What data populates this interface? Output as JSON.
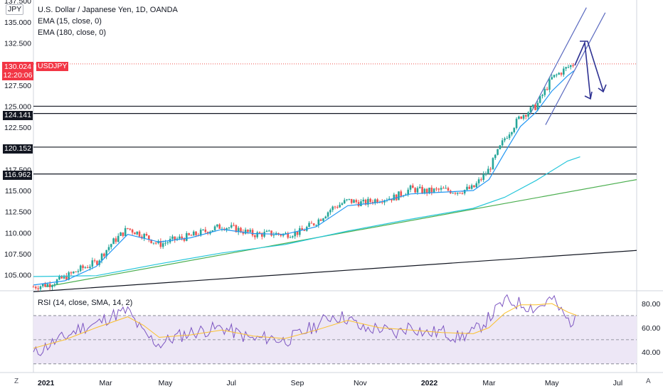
{
  "symbol": {
    "currency_badge": "JPY",
    "title": "U.S. Dollar / Japanese Yen, 1D, OANDA",
    "ema_fast_label": "EMA (15, close, 0)",
    "ema_slow_label": "EMA (180, close, 0)"
  },
  "price_marker": {
    "price": "130.024",
    "countdown": "12:20:06",
    "ticker": "USDJPY",
    "color": "#f23645"
  },
  "levels": [
    {
      "label": "124.141",
      "value": 124.141
    },
    {
      "label": "120.152",
      "value": 120.152
    },
    {
      "label": "116.962",
      "value": 116.962
    }
  ],
  "rsi": {
    "label": "RSI (14, close, SMA, 14, 2)",
    "ticks": [
      "80.00",
      "60.00",
      "40.00"
    ]
  },
  "bottom_bar": {
    "left_button": "Z",
    "right_button": "A"
  },
  "colors": {
    "up": "#26a69a",
    "down": "#ef5350",
    "ema_fast": "#2196f3",
    "ema_slow": "#26c6da",
    "trend_green": "#4caf50",
    "trend_black": "#131722",
    "annotation": "#2e3192",
    "rsi_line": "#7e57c2",
    "rsi_ma": "#fbc02d",
    "rsi_band": "#ede7f6"
  },
  "chart_data": {
    "type": "candlestick",
    "title": "U.S. Dollar / Japanese Yen, 1D, OANDA",
    "x_ticks": [
      "2021",
      "Mar",
      "May",
      "Jul",
      "Sep",
      "Nov",
      "2022",
      "Mar",
      "May",
      "Jul"
    ],
    "y_ticks": [
      "137.500",
      "135.000",
      "132.500",
      "130.000",
      "127.500",
      "125.000",
      "122.500",
      "120.000",
      "117.500",
      "115.000",
      "112.500",
      "110.000",
      "107.500",
      "105.000"
    ],
    "ylim": [
      103.2,
      137.6
    ],
    "x_range_months": [
      0,
      19.2
    ],
    "close_series": {
      "name": "USDJPY",
      "points": [
        [
          0,
          103.6
        ],
        [
          0.5,
          103.9
        ],
        [
          1,
          104.7
        ],
        [
          1.5,
          105.7
        ],
        [
          2,
          106.5
        ],
        [
          2.5,
          108.8
        ],
        [
          3,
          110.5
        ],
        [
          3.5,
          109.7
        ],
        [
          4,
          108.6
        ],
        [
          4.5,
          109.2
        ],
        [
          5,
          109.6
        ],
        [
          5.5,
          110.2
        ],
        [
          6,
          110.8
        ],
        [
          6.5,
          110.4
        ],
        [
          7,
          109.8
        ],
        [
          7.5,
          109.9
        ],
        [
          8,
          109.8
        ],
        [
          8.5,
          110.1
        ],
        [
          9,
          111.3
        ],
        [
          9.5,
          112.9
        ],
        [
          10,
          113.8
        ],
        [
          10.5,
          113.5
        ],
        [
          11,
          114.0
        ],
        [
          11.5,
          114.2
        ],
        [
          12,
          115.2
        ],
        [
          12.5,
          114.9
        ],
        [
          13,
          115.1
        ],
        [
          13.5,
          114.9
        ],
        [
          14,
          115.3
        ],
        [
          14.5,
          117.5
        ],
        [
          15,
          121.2
        ],
        [
          15.5,
          123.8
        ],
        [
          16,
          125.0
        ],
        [
          16.5,
          128.3
        ],
        [
          17,
          129.6
        ],
        [
          17.2,
          130.0
        ]
      ]
    },
    "ema_fast": {
      "name": "EMA (15, close, 0)",
      "points": [
        [
          0,
          103.8
        ],
        [
          1,
          104.3
        ],
        [
          2,
          106.0
        ],
        [
          3,
          109.8
        ],
        [
          4,
          108.9
        ],
        [
          5,
          109.4
        ],
        [
          6,
          110.4
        ],
        [
          7,
          109.9
        ],
        [
          8,
          109.8
        ],
        [
          9,
          110.7
        ],
        [
          10,
          113.2
        ],
        [
          11,
          113.6
        ],
        [
          12,
          114.6
        ],
        [
          13,
          114.8
        ],
        [
          14,
          115.0
        ],
        [
          14.5,
          116.3
        ],
        [
          15,
          119.5
        ],
        [
          15.5,
          122.6
        ],
        [
          16,
          124.3
        ],
        [
          16.5,
          126.8
        ],
        [
          17,
          128.6
        ],
        [
          17.2,
          129.2
        ]
      ]
    },
    "ema_slow": {
      "name": "EMA (180, close, 0)",
      "points": [
        [
          0,
          104.8
        ],
        [
          2,
          104.9
        ],
        [
          4,
          106.3
        ],
        [
          6,
          107.6
        ],
        [
          8,
          108.6
        ],
        [
          10,
          110.2
        ],
        [
          12,
          111.6
        ],
        [
          14,
          112.9
        ],
        [
          15,
          114.2
        ],
        [
          16,
          116.2
        ],
        [
          17,
          118.5
        ],
        [
          17.4,
          119.0
        ]
      ]
    },
    "trendlines": [
      {
        "from": [
          0.4,
          103.6
        ],
        "to": [
          19.2,
          116.3
        ]
      },
      {
        "from": [
          0.0,
          103.0
        ],
        "to": [
          19.2,
          107.9
        ]
      },
      {
        "from": [
          15.8,
          124.0
        ],
        "to": [
          17.6,
          136.7
        ]
      },
      {
        "from": [
          16.3,
          122.8
        ],
        "to": [
          18.2,
          136.1
        ]
      }
    ],
    "horizontal_levels": [
      124.141,
      120.152,
      116.962
    ],
    "last_price": 130.024
  },
  "rsi_data": {
    "ylim": [
      24,
      90
    ],
    "band": [
      30,
      70
    ],
    "mid": 50,
    "rsi_points": [
      [
        0,
        38
      ],
      [
        0.5,
        46
      ],
      [
        1,
        52
      ],
      [
        1.5,
        60
      ],
      [
        2,
        63
      ],
      [
        2.5,
        70
      ],
      [
        3,
        74
      ],
      [
        3.5,
        55
      ],
      [
        4,
        46
      ],
      [
        4.5,
        52
      ],
      [
        5,
        56
      ],
      [
        5.5,
        58
      ],
      [
        6,
        60
      ],
      [
        6.5,
        55
      ],
      [
        7,
        50
      ],
      [
        7.5,
        52
      ],
      [
        8,
        49
      ],
      [
        8.5,
        55
      ],
      [
        9,
        62
      ],
      [
        9.5,
        70
      ],
      [
        10,
        68
      ],
      [
        10.5,
        58
      ],
      [
        11,
        60
      ],
      [
        11.5,
        54
      ],
      [
        12,
        62
      ],
      [
        12.5,
        55
      ],
      [
        13,
        57
      ],
      [
        13.5,
        52
      ],
      [
        14,
        56
      ],
      [
        14.5,
        68
      ],
      [
        15,
        82
      ],
      [
        15.5,
        80
      ],
      [
        16,
        76
      ],
      [
        16.5,
        84
      ],
      [
        17,
        66
      ],
      [
        17.3,
        65
      ]
    ],
    "ma_points": [
      [
        0,
        43
      ],
      [
        1,
        50
      ],
      [
        2,
        60
      ],
      [
        3,
        69
      ],
      [
        3.5,
        62
      ],
      [
        4,
        52
      ],
      [
        5,
        54
      ],
      [
        6,
        58
      ],
      [
        7,
        53
      ],
      [
        8,
        51
      ],
      [
        9,
        58
      ],
      [
        10,
        66
      ],
      [
        11,
        60
      ],
      [
        12,
        58
      ],
      [
        13,
        56
      ],
      [
        14,
        55
      ],
      [
        14.5,
        60
      ],
      [
        15,
        72
      ],
      [
        15.5,
        79
      ],
      [
        16,
        79
      ],
      [
        16.5,
        80
      ],
      [
        17,
        73
      ],
      [
        17.3,
        70
      ]
    ]
  }
}
